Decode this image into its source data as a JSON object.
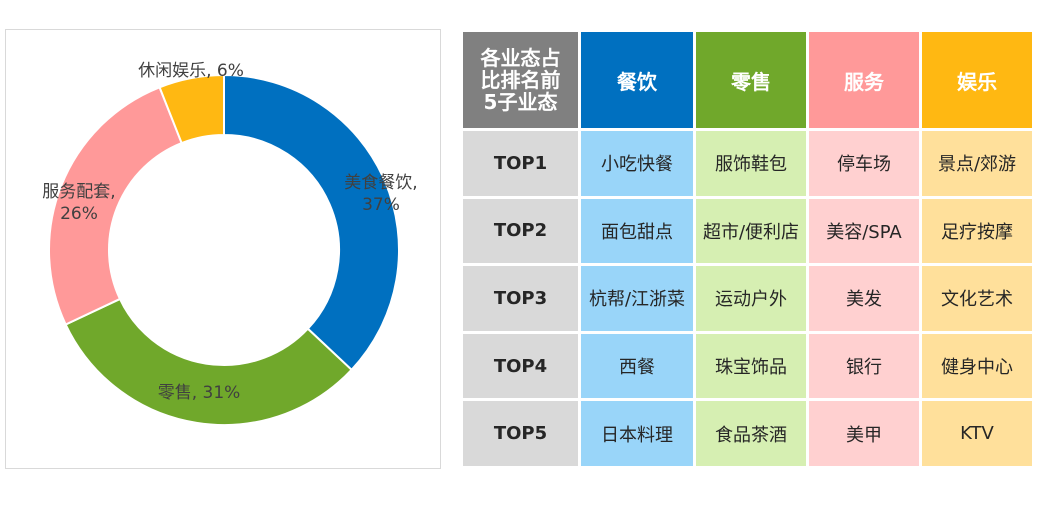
{
  "chart_data": {
    "type": "pie",
    "donut": true,
    "slices": [
      {
        "name": "美食餐饮",
        "label": "美食餐饮,",
        "pct": "37%",
        "value": 37,
        "color": "#0070c0"
      },
      {
        "name": "零售",
        "label": "零售, 31%",
        "pct": "",
        "value": 31,
        "color": "#70a82b"
      },
      {
        "name": "服务配套",
        "label": "服务配套,",
        "pct": "26%",
        "value": 26,
        "color": "#ff9999"
      },
      {
        "name": "休闲娱乐",
        "label": "休闲娱乐, 6%",
        "pct": "",
        "value": 6,
        "color": "#ffb812"
      }
    ]
  },
  "table": {
    "corner": [
      "各业态占",
      "比排名前",
      "5子业态"
    ],
    "columns": [
      "餐饮",
      "零售",
      "服务",
      "娱乐"
    ],
    "rows": [
      {
        "rank": "TOP1",
        "cells": [
          "小吃快餐",
          "服饰鞋包",
          "停车场",
          "景点/郊游"
        ]
      },
      {
        "rank": "TOP2",
        "cells": [
          "面包甜点",
          "超市/便利店",
          "美容/SPA",
          "足疗按摩"
        ]
      },
      {
        "rank": "TOP3",
        "cells": [
          "杭帮/江浙菜",
          "运动户外",
          "美发",
          "文化艺术"
        ]
      },
      {
        "rank": "TOP4",
        "cells": [
          "西餐",
          "珠宝饰品",
          "银行",
          "健身中心"
        ]
      },
      {
        "rank": "TOP5",
        "cells": [
          "日本料理",
          "食品茶酒",
          "美甲",
          "KTV"
        ]
      }
    ]
  }
}
